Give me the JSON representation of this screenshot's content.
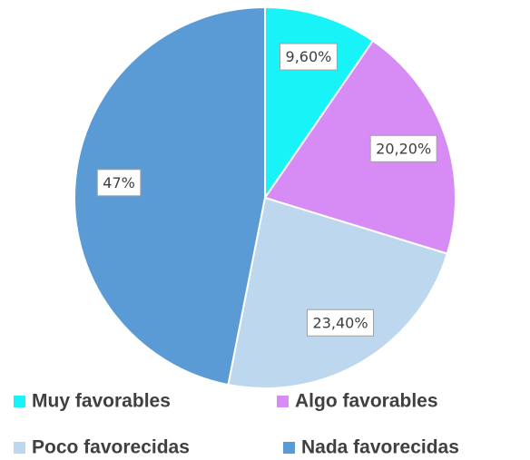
{
  "chart_data": {
    "type": "pie",
    "categories": [
      "Muy favorables",
      "Algo favorables",
      "Poco favorecidas",
      "Nada favorecidas"
    ],
    "values": [
      9.6,
      20.2,
      23.4,
      47
    ],
    "value_labels": [
      "9,60%",
      "20,20%",
      "23,40%",
      "47%"
    ],
    "colors": [
      "#17f3f7",
      "#d68bf5",
      "#bdd7ee",
      "#5b9bd5"
    ],
    "legend": "bottom"
  }
}
